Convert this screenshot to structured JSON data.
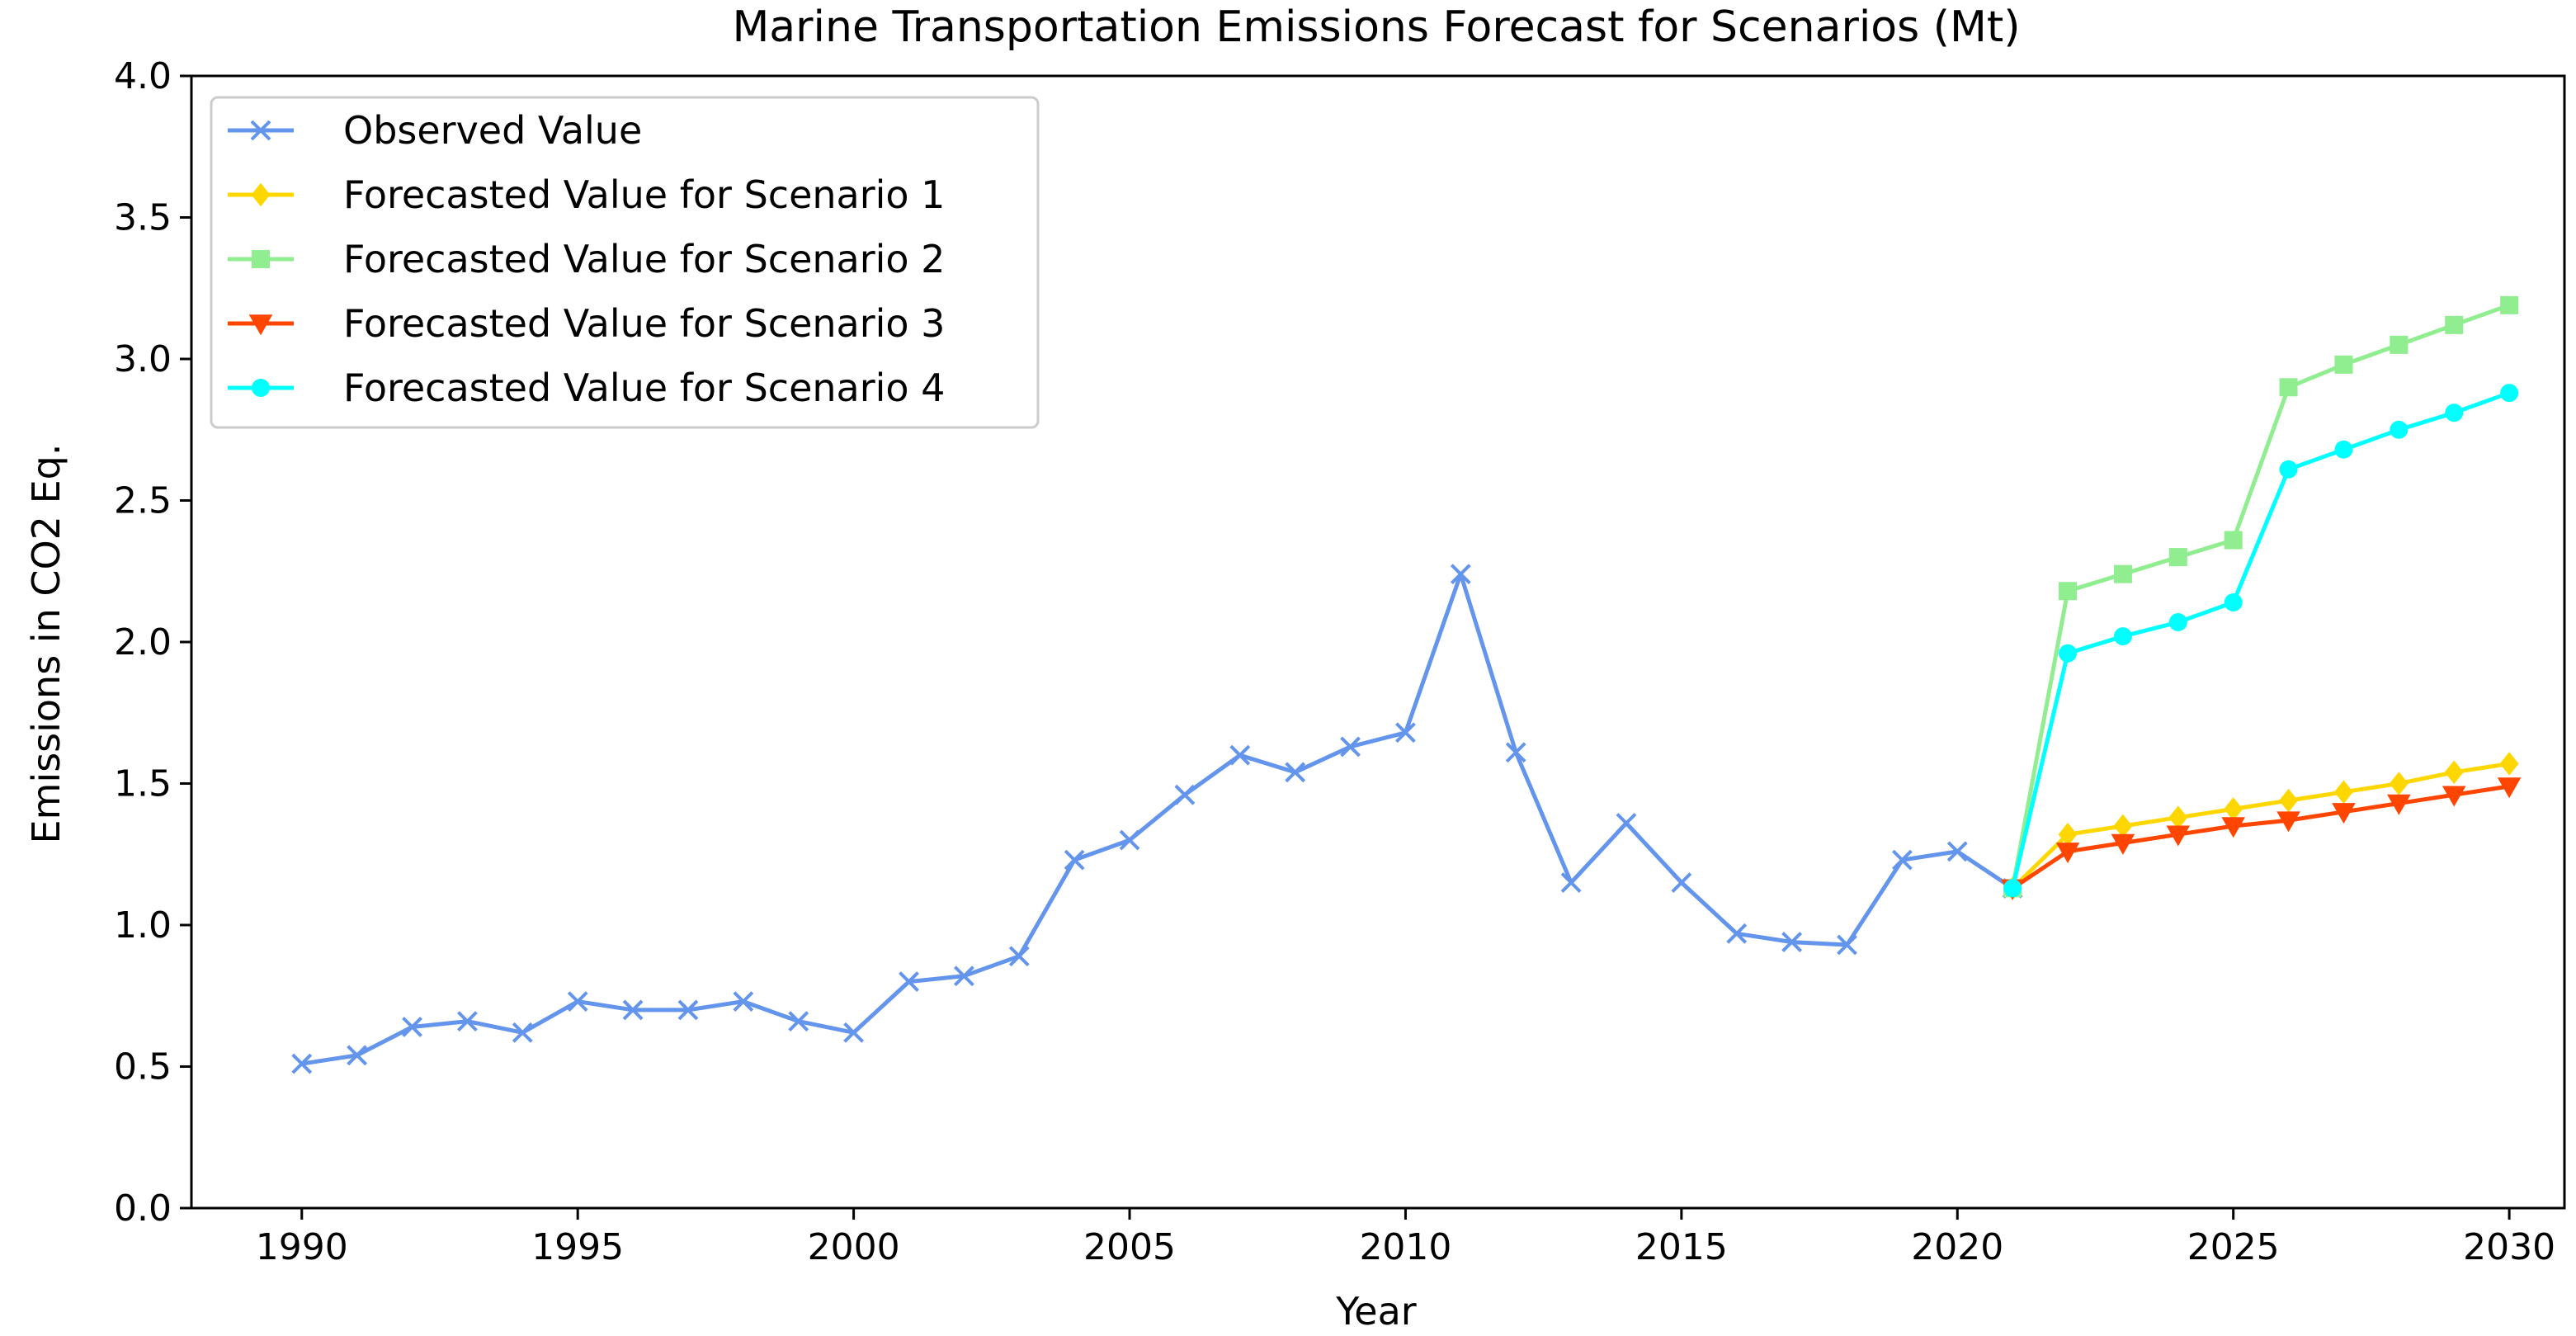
{
  "chart_data": {
    "type": "line",
    "title": "Marine Transportation Emissions Forecast for Scenarios (Mt)",
    "xlabel": "Year",
    "ylabel": "Emissions in CO2 Eq.",
    "xlim": [
      1988,
      2031
    ],
    "ylim": [
      0.0,
      4.0
    ],
    "xticks": [
      1990,
      1995,
      2000,
      2005,
      2010,
      2015,
      2020,
      2025,
      2030
    ],
    "xtick_labels": [
      "1990",
      "1995",
      "2000",
      "2005",
      "2010",
      "2015",
      "2020",
      "2025",
      "2030"
    ],
    "yticks": [
      0.0,
      0.5,
      1.0,
      1.5,
      2.0,
      2.5,
      3.0,
      3.5,
      4.0
    ],
    "ytick_labels": [
      "0.0",
      "0.5",
      "1.0",
      "1.5",
      "2.0",
      "2.5",
      "3.0",
      "3.5",
      "4.0"
    ],
    "grid": false,
    "legend_position": "top-left",
    "series": [
      {
        "name": "Observed Value",
        "color": "#6495ED",
        "marker": "x",
        "x": [
          1990,
          1991,
          1992,
          1993,
          1994,
          1995,
          1996,
          1997,
          1998,
          1999,
          2000,
          2001,
          2002,
          2003,
          2004,
          2005,
          2006,
          2007,
          2008,
          2009,
          2010,
          2011,
          2012,
          2013,
          2014,
          2015,
          2016,
          2017,
          2018,
          2019,
          2020,
          2021
        ],
        "values": [
          0.51,
          0.54,
          0.64,
          0.66,
          0.62,
          0.73,
          0.7,
          0.7,
          0.73,
          0.66,
          0.62,
          0.8,
          0.82,
          0.89,
          1.23,
          1.3,
          1.46,
          1.6,
          1.54,
          1.63,
          1.68,
          2.24,
          1.61,
          1.15,
          1.36,
          1.15,
          0.97,
          0.94,
          0.93,
          1.23,
          1.26,
          1.13
        ]
      },
      {
        "name": "Forecasted Value for Scenario 1",
        "color": "#FFD700",
        "marker": "diamond",
        "x": [
          2021,
          2022,
          2023,
          2024,
          2025,
          2026,
          2027,
          2028,
          2029,
          2030
        ],
        "values": [
          1.13,
          1.32,
          1.35,
          1.38,
          1.41,
          1.44,
          1.47,
          1.5,
          1.54,
          1.57
        ]
      },
      {
        "name": "Forecasted Value for Scenario 2",
        "color": "#90EE90",
        "marker": "square",
        "x": [
          2021,
          2022,
          2023,
          2024,
          2025,
          2026,
          2027,
          2028,
          2029,
          2030
        ],
        "values": [
          1.13,
          2.18,
          2.24,
          2.3,
          2.36,
          2.9,
          2.98,
          3.05,
          3.12,
          3.19
        ]
      },
      {
        "name": "Forecasted Value for Scenario 3",
        "color": "#FF4500",
        "marker": "triangle-down",
        "x": [
          2021,
          2022,
          2023,
          2024,
          2025,
          2026,
          2027,
          2028,
          2029,
          2030
        ],
        "values": [
          1.13,
          1.26,
          1.29,
          1.32,
          1.35,
          1.37,
          1.4,
          1.43,
          1.46,
          1.49
        ]
      },
      {
        "name": "Forecasted Value for Scenario 4",
        "color": "#00FFFF",
        "marker": "circle",
        "x": [
          2021,
          2022,
          2023,
          2024,
          2025,
          2026,
          2027,
          2028,
          2029,
          2030
        ],
        "values": [
          1.13,
          1.96,
          2.02,
          2.07,
          2.14,
          2.61,
          2.68,
          2.75,
          2.81,
          2.88
        ]
      }
    ]
  }
}
